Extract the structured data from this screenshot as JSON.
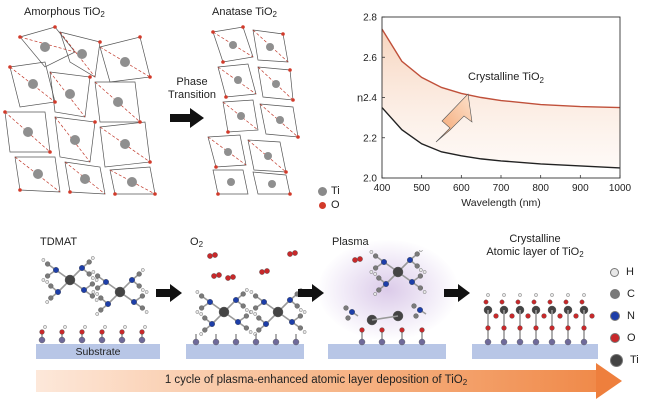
{
  "top": {
    "amorphous": {
      "label": "Amorphous TiO",
      "sub": "2"
    },
    "anatase": {
      "label": "Anatase TiO",
      "sub": "2"
    },
    "transition": {
      "line1": "Phase",
      "line2": "Transition"
    },
    "legend_top": [
      {
        "label": "Ti",
        "color": "#8a8a8a"
      },
      {
        "label": "O",
        "color": "#d23a2a"
      }
    ]
  },
  "chart_data": {
    "type": "line",
    "xlabel": "Wavelength (nm)",
    "ylabel": "n",
    "xlim": [
      400,
      1000
    ],
    "ylim": [
      2.0,
      2.8
    ],
    "xticks": [
      400,
      500,
      600,
      700,
      800,
      900,
      1000
    ],
    "yticks": [
      "2.0",
      "2.2",
      "2.4",
      "2.6",
      "2.8"
    ],
    "annotation": {
      "text": "Crystalline TiO",
      "sub": "2"
    },
    "series": [
      {
        "name": "",
        "color": "#c0503a",
        "x": [
          400,
          450,
          500,
          550,
          600,
          650,
          700,
          800,
          900,
          1000
        ],
        "y": [
          2.74,
          2.58,
          2.5,
          2.45,
          2.42,
          2.4,
          2.385,
          2.365,
          2.355,
          2.35
        ]
      },
      {
        "name": "",
        "color": "#222222",
        "x": [
          400,
          450,
          500,
          550,
          600,
          650,
          700,
          800,
          900,
          1000
        ],
        "y": [
          2.35,
          2.24,
          2.17,
          2.13,
          2.11,
          2.095,
          2.085,
          2.07,
          2.06,
          2.05
        ]
      }
    ]
  },
  "process": {
    "steps": [
      {
        "label": "TDMAT"
      },
      {
        "label": "O",
        "sub": "2"
      },
      {
        "label": "Plasma"
      },
      {
        "label": "Crystalline",
        "label2": "Atomic layer of TiO",
        "sub": "2"
      }
    ],
    "substrate": "Substrate",
    "legend": [
      {
        "label": "H",
        "color": "#e8e8e8"
      },
      {
        "label": "C",
        "color": "#7a7a7a"
      },
      {
        "label": "N",
        "color": "#1d3ea8"
      },
      {
        "label": "O",
        "color": "#c8282a"
      },
      {
        "label": "Ti",
        "color": "#444444"
      }
    ],
    "cycle_text": "1 cycle of plasma-enhanced atomic layer deposition of TiO",
    "cycle_sub": "2"
  }
}
